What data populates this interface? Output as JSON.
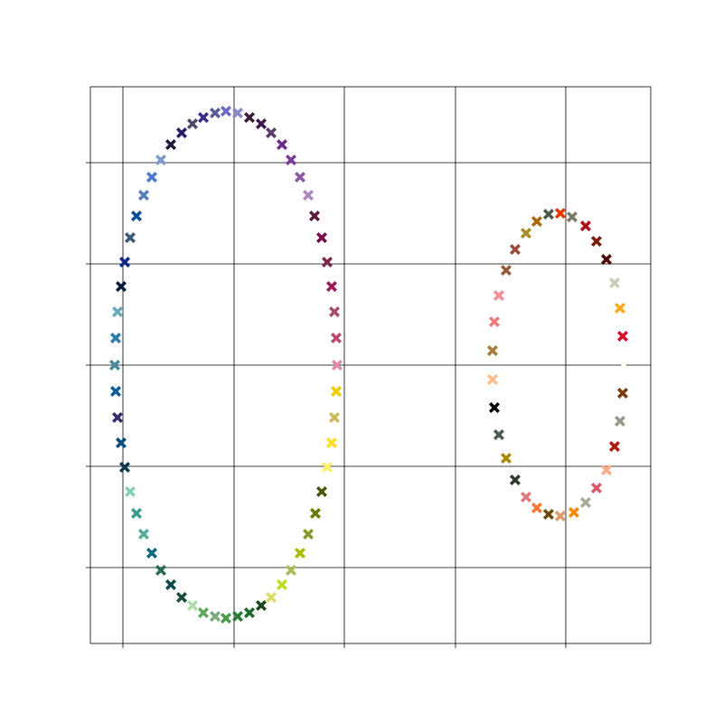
{
  "chart_data": {
    "type": "scatter",
    "xlim": [
      0,
      620
    ],
    "ylim": [
      0,
      616
    ],
    "xticks": [
      36,
      159,
      281,
      404,
      526
    ],
    "yticks": [
      84,
      196,
      308,
      420,
      532
    ],
    "grid": true,
    "marker": "X",
    "series": [
      {
        "x": [
          138,
          150,
          163,
          176,
          189,
          200,
          212,
          222,
          232,
          241,
          248,
          256,
          262,
          267,
          270,
          272,
          273,
          272,
          270,
          267,
          262,
          256,
          249,
          241,
          232,
          222,
          212,
          200,
          189,
          176,
          163,
          150,
          138,
          125,
          113,
          101,
          89,
          78,
          68,
          59,
          51,
          44,
          38,
          34,
          30,
          28,
          27,
          28,
          30,
          34,
          38,
          44,
          51,
          59,
          68,
          78,
          89,
          101,
          113,
          125
        ],
        "y": [
          587,
          589,
          587,
          582,
          575,
          565,
          552,
          535,
          516,
          496,
          473,
          449,
          422,
          395,
          367,
          338,
          308,
          279,
          250,
          222,
          195,
          168,
          144,
          121,
          100,
          81,
          65,
          51,
          42,
          34,
          30,
          28,
          30,
          34,
          42,
          51,
          65,
          81,
          100,
          121,
          144,
          168,
          195,
          222,
          250,
          279,
          308,
          338,
          367,
          395,
          422,
          449,
          473,
          496,
          516,
          535,
          552,
          565,
          575,
          582
        ],
        "colors": [
          "#5a5a9a",
          "#6a6ac0",
          "#8a8ac8",
          "#3a1a3a",
          "#3a1a4a",
          "#5a3a6a",
          "#6a2a8a",
          "#7a3a9a",
          "#8a5aaa",
          "#aa8abb",
          "#5a1a3a",
          "#7a0a4a",
          "#7a2a4a",
          "#9a1a5a",
          "#aa4a6a",
          "#bb4a6a",
          "#dd8aaa",
          "#eecc00",
          "#ccbb55",
          "#ffdd22",
          "#ffee66",
          "#4a5a0a",
          "#6a7a0a",
          "#8a9a2a",
          "#aabb00",
          "#aabb55",
          "#bbdd22",
          "#dddd66",
          "#1a4a1a",
          "#1a6a2a",
          "#2a7a3a",
          "#4a9a4a",
          "#7aaa7a",
          "#5aaa5a",
          "#aaddaa",
          "#1a4a3a",
          "#0a4a4a",
          "#2a6a5a",
          "#0a6a7a",
          "#5aaa99",
          "#3a9a8a",
          "#88ccbb",
          "#0a3a4a",
          "#0a4a7a",
          "#3a2a6a",
          "#0a5a9a",
          "#4a8a9a",
          "#2a7aaa",
          "#6aaabb",
          "#0a1a3a",
          "#0a2a8a",
          "#3a5a7a",
          "#0a4a9a",
          "#5a7abb",
          "#4a7acc",
          "#7a9acc",
          "#1a1a3a",
          "#2a1a6a",
          "#4a4a6a",
          "#3a2a8a"
        ]
      },
      {
        "x": [
          520,
          533,
          548,
          560,
          571,
          580,
          586,
          589,
          590,
          589,
          586,
          580,
          571,
          560,
          548,
          535,
          520,
          507,
          494,
          482,
          470,
          460,
          452,
          447,
          445,
          445,
          447,
          452,
          460,
          470,
          482,
          494,
          507
        ],
        "y": [
          476,
          472,
          462,
          445,
          425,
          399,
          371,
          340,
          308,
          277,
          246,
          218,
          192,
          172,
          156,
          145,
          141,
          143,
          150,
          162,
          181,
          205,
          231,
          261,
          292,
          324,
          356,
          385,
          413,
          436,
          454,
          467,
          475
        ],
        "colors": [
          "#ee3300",
          "#7a7a6a",
          "#aa0a1a",
          "#7a1a0a",
          "#4a0a0a",
          "#ccccbb",
          "#ffaa22",
          "#dd0a2a",
          "#fffff0",
          "#7a3a0a",
          "#999988",
          "#aa1a0a",
          "#ffaa88",
          "#dd5a6a",
          "#aaaa99",
          "#ff8800",
          "#dd9a6a",
          "#6a4a0a",
          "#ff7733",
          "#dd7a7a",
          "#2a3a2a",
          "#aa8800",
          "#4a5a4a",
          "#000000",
          "#ffbb88",
          "#aa7a3a",
          "#ee7a7a",
          "#ff8a9a",
          "#995a3a",
          "#994a3a",
          "#aa8a2a",
          "#aa6a0a",
          "#4a5a4a"
        ]
      }
    ]
  }
}
